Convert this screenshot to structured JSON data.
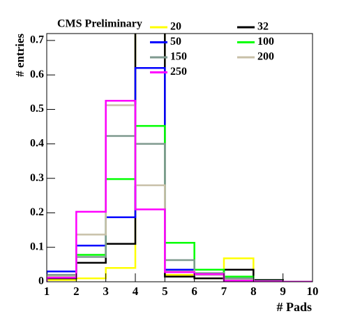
{
  "chart_data": {
    "type": "histogram",
    "title": "CMS Preliminary",
    "xlabel": "# Pads",
    "ylabel": "# entries",
    "bins": [
      1,
      2,
      3,
      4,
      5,
      6,
      7,
      8,
      9,
      10
    ],
    "xlim": [
      1,
      10
    ],
    "xticks": [
      1,
      2,
      3,
      4,
      5,
      6,
      7,
      8,
      9,
      10
    ],
    "ylim": [
      0,
      0.72
    ],
    "yticks": [
      0,
      0.1,
      0.2,
      0.3,
      0.4,
      0.5,
      0.6,
      0.7
    ],
    "series": [
      {
        "name": "20",
        "color": "#ffff00",
        "values": [
          0.005,
          0.01,
          0.04,
          0.75,
          0.02,
          0.01,
          0.068,
          0.002,
          0
        ]
      },
      {
        "name": "32",
        "color": "#000000",
        "values": [
          0.01,
          0.055,
          0.11,
          0.75,
          0.015,
          0.01,
          0.035,
          0.005,
          0
        ]
      },
      {
        "name": "50",
        "color": "#0000ff",
        "values": [
          0.03,
          0.105,
          0.187,
          0.62,
          0.035,
          0.02,
          0.01,
          0.002,
          0
        ]
      },
      {
        "name": "100",
        "color": "#00ff00",
        "values": [
          0.015,
          0.078,
          0.298,
          0.452,
          0.113,
          0.035,
          0.015,
          0.002,
          0
        ]
      },
      {
        "name": "150",
        "color": "#7f9a8f",
        "values": [
          0.02,
          0.072,
          0.423,
          0.4,
          0.063,
          0.025,
          0.01,
          0.002,
          0
        ]
      },
      {
        "name": "200",
        "color": "#c8c0a8",
        "values": [
          0.015,
          0.137,
          0.512,
          0.28,
          0.03,
          0.02,
          0.005,
          0.001,
          0
        ]
      },
      {
        "name": "250",
        "color": "#ff00ff",
        "values": [
          0.012,
          0.203,
          0.525,
          0.21,
          0.028,
          0.022,
          0.003,
          0.001,
          0
        ]
      }
    ]
  }
}
